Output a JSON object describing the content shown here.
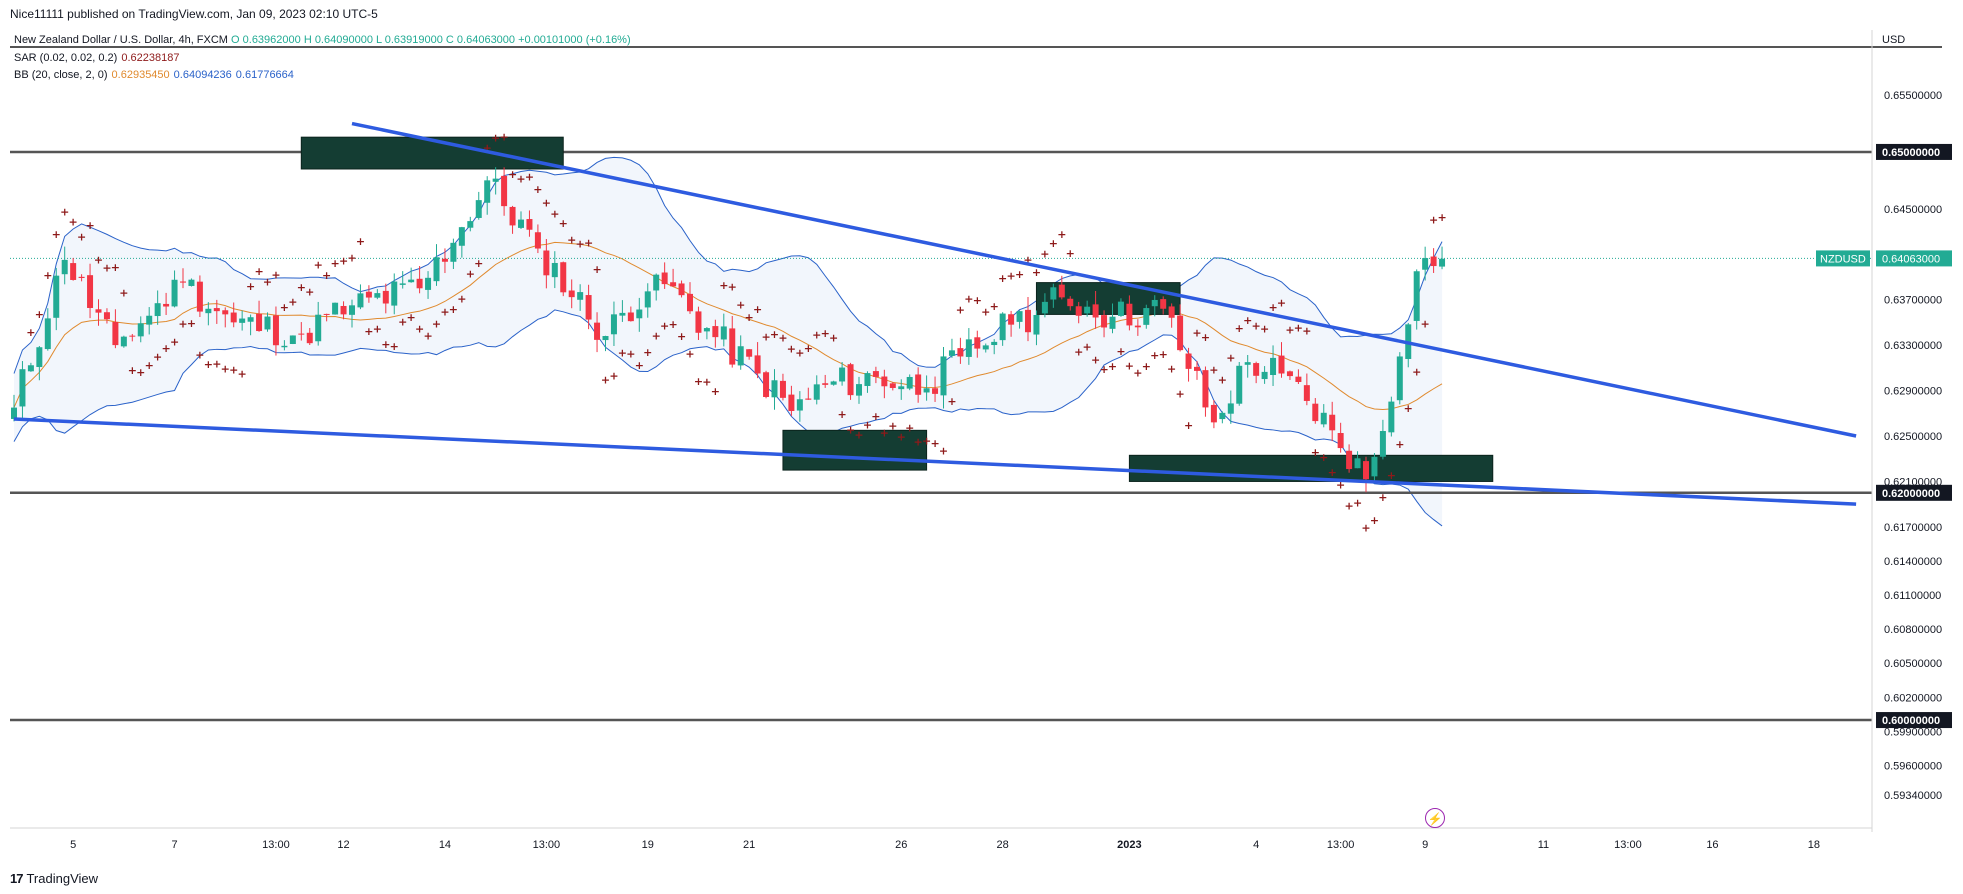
{
  "publisher": "Nice11111 published on TradingView.com, Jan 09, 2023 02:10 UTC-5",
  "legend": {
    "main_title": "New Zealand Dollar / U.S. Dollar, 4h, FXCM",
    "ohlc": "O 0.63962000  H 0.64090000  L 0.63919000  C 0.64063000  +0.00101000 (+0.16%)",
    "sar_label": "SAR (0.02, 0.02, 0.2)",
    "sar_value": "0.62238187",
    "bb_label": "BB (20, close, 2, 0)",
    "bb_basis": "0.62935450",
    "bb_upper": "0.64094236",
    "bb_lower": "0.61776664"
  },
  "currency_label": "USD",
  "footer_brand": "TradingView",
  "colors": {
    "bull": "#22ab94",
    "bear": "#f23645",
    "sar": "#8e1a1a",
    "bb_basis": "#e08a2e",
    "bb_band": "#2a62c9",
    "zone": "#143d33",
    "trendline": "#2e5be0",
    "level_line": "#555555",
    "symbol_tag": "#22ab94"
  },
  "chart_data": {
    "type": "candlestick",
    "symbol": "NZDUSD",
    "timeframe": "4h",
    "ylim": [
      0.5905,
      0.6595
    ],
    "price_axis_labels": [
      "0.65500000",
      "0.64500000",
      "0.63700000",
      "0.63300000",
      "0.62900000",
      "0.62500000",
      "0.62100000",
      "0.61700000",
      "0.61400000",
      "0.61100000",
      "0.60800000",
      "0.60500000",
      "0.60200000",
      "0.59900000",
      "0.59600000",
      "0.59340000"
    ],
    "price_axis_values": [
      0.655,
      0.645,
      0.637,
      0.633,
      0.629,
      0.625,
      0.621,
      0.617,
      0.614,
      0.611,
      0.608,
      0.605,
      0.602,
      0.599,
      0.596,
      0.5934
    ],
    "highlighted_levels": [
      {
        "label": "0.65000000",
        "value": 0.65
      },
      {
        "label": "0.62000000",
        "value": 0.62
      },
      {
        "label": "0.60000000",
        "value": 0.6
      }
    ],
    "last_price": {
      "symbol": "NZDUSD",
      "label": "0.64063000",
      "value": 0.64063
    },
    "time_axis_labels": [
      "5",
      "7",
      "13:00",
      "12",
      "14",
      "13:00",
      "19",
      "21",
      "26",
      "28",
      "2023",
      "4",
      "13:00",
      "9",
      "11",
      "13:00",
      "16",
      "18"
    ],
    "time_axis_index": [
      7,
      19,
      31,
      39,
      51,
      63,
      75,
      87,
      105,
      117,
      132,
      147,
      157,
      167,
      181,
      191,
      201,
      213
    ],
    "candle_count": 170,
    "anchors_index": [
      0,
      6,
      12,
      20,
      26,
      34,
      40,
      48,
      52,
      56,
      62,
      70,
      76,
      82,
      88,
      92,
      96,
      102,
      108,
      112,
      118,
      124,
      130,
      136,
      142,
      146,
      150,
      156,
      160,
      164,
      166,
      169
    ],
    "anchors_close": [
      0.6275,
      0.6405,
      0.633,
      0.6385,
      0.635,
      0.634,
      0.6365,
      0.638,
      0.642,
      0.6475,
      0.6415,
      0.6338,
      0.6392,
      0.6345,
      0.6305,
      0.6272,
      0.6295,
      0.6302,
      0.6292,
      0.632,
      0.6348,
      0.6372,
      0.6355,
      0.6362,
      0.6262,
      0.6315,
      0.6305,
      0.6255,
      0.6212,
      0.632,
      0.6395,
      0.6406
    ],
    "zones": [
      {
        "index_from": 34,
        "index_to": 65,
        "price_low": 0.6485,
        "price_high": 0.6513
      },
      {
        "index_from": 91,
        "index_to": 108,
        "price_low": 0.622,
        "price_high": 0.6255
      },
      {
        "index_from": 121,
        "index_to": 138,
        "price_low": 0.6357,
        "price_high": 0.6385
      },
      {
        "index_from": 132,
        "index_to": 175,
        "price_low": 0.621,
        "price_high": 0.6233
      }
    ],
    "trendlines": [
      {
        "index_from": 40,
        "price_from": 0.6525,
        "index_to": 218,
        "price_to": 0.625
      },
      {
        "index_from": 0,
        "price_from": 0.6265,
        "index_to": 218,
        "price_to": 0.619
      }
    ]
  }
}
